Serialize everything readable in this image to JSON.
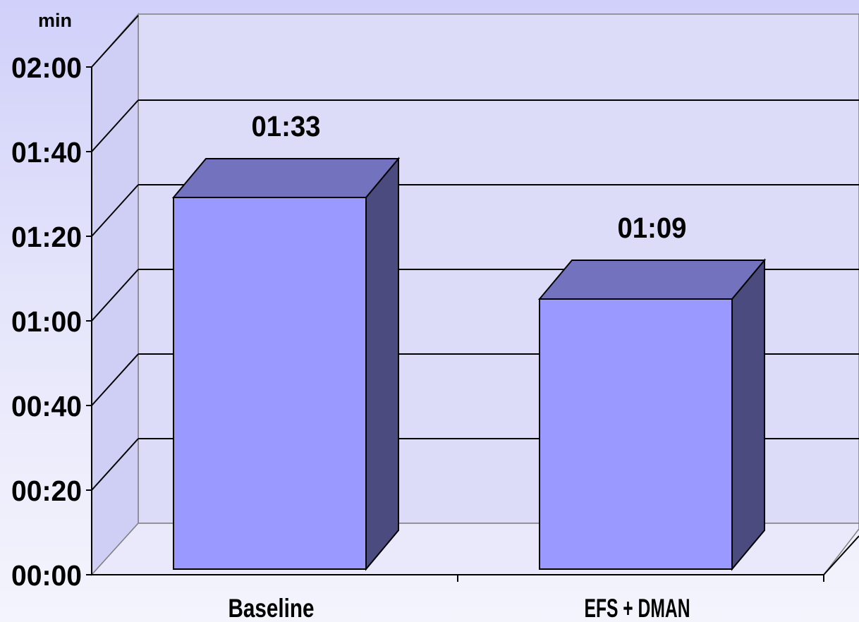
{
  "chart_data": {
    "type": "bar",
    "style": "3d",
    "unit": "min",
    "categories": [
      "Baseline",
      "EFS + DMAN"
    ],
    "values": [
      93,
      69
    ],
    "value_labels": [
      "01:33",
      "01:09"
    ],
    "ylim": [
      0,
      120
    ],
    "yticks": [
      0,
      20,
      40,
      60,
      80,
      100,
      120
    ],
    "ytick_labels": [
      "00:00",
      "00:20",
      "00:40",
      "01:00",
      "01:20",
      "01:40",
      "02:00"
    ],
    "grid": true,
    "legend": "none",
    "colors": {
      "bar_front": "#9999ff",
      "bar_top": "#7272be",
      "bar_side": "#4b4b7f",
      "walls": "#dcdcf8"
    }
  }
}
